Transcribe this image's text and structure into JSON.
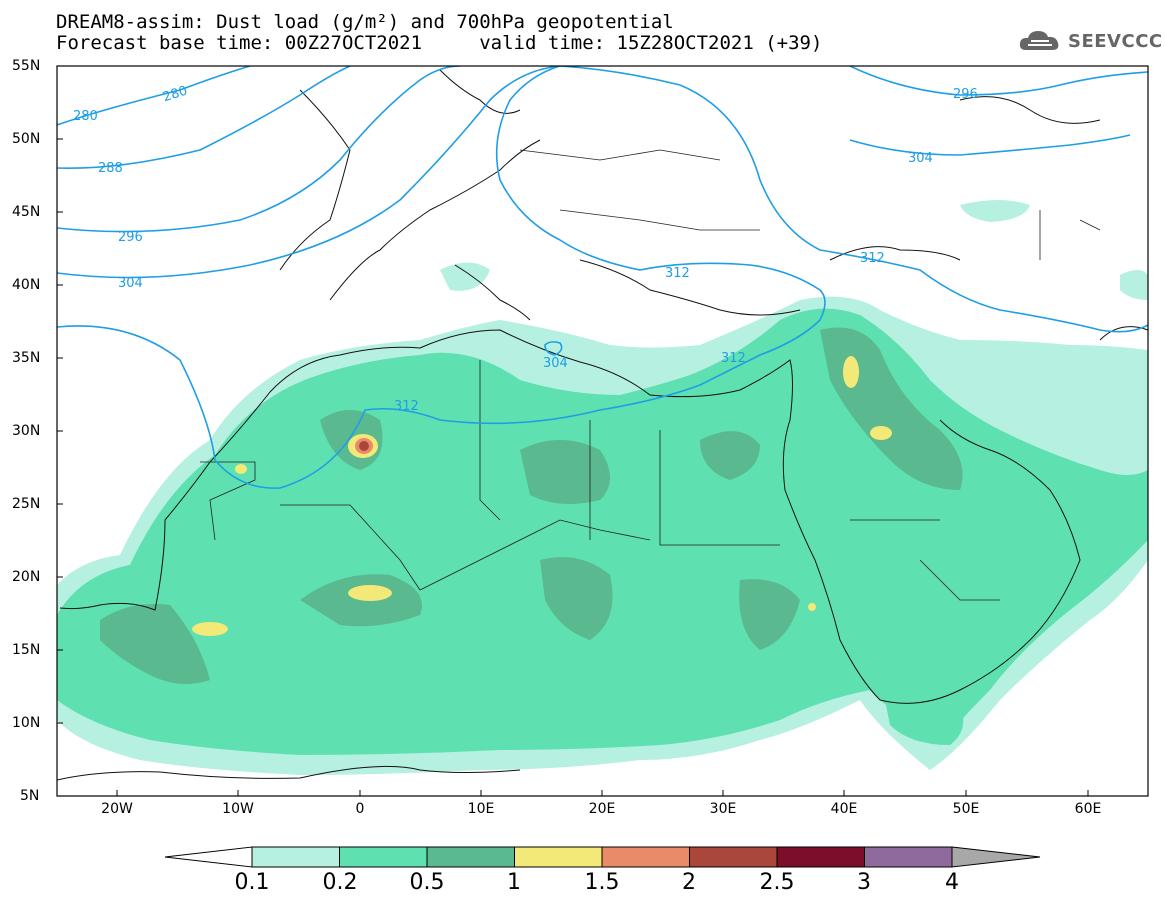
{
  "title": {
    "line1": "DREAM8-assim: Dust load (g/m²) and 700hPa geopotential",
    "line2": "Forecast base time: 00Z27OCT2021     valid time: 15Z28OCT2021 (+39)"
  },
  "brand": {
    "name": "SEEVCCC",
    "icon": "cloud-logo-icon"
  },
  "map": {
    "lon_range": [
      -25,
      65
    ],
    "lat_range": [
      5,
      55
    ],
    "lat_labels": [
      "55N",
      "50N",
      "45N",
      "40N",
      "35N",
      "30N",
      "25N",
      "20N",
      "15N",
      "10N",
      "5N"
    ],
    "lon_labels": [
      "20W",
      "10W",
      "0",
      "10E",
      "20E",
      "30E",
      "40E",
      "50E",
      "60E"
    ],
    "contour_color": "#1f9ee6",
    "contour_labels": [
      "280",
      "280",
      "288",
      "296",
      "304",
      "296",
      "304",
      "312",
      "312",
      "304",
      "312",
      "312"
    ]
  },
  "colorbar": {
    "labels": [
      "0.1",
      "0.2",
      "0.5",
      "1",
      "1.5",
      "2",
      "2.5",
      "3",
      "4"
    ],
    "colors": [
      "#b6f0e0",
      "#5ee0b0",
      "#5ab98e",
      "#f2e978",
      "#e98b68",
      "#a9473b",
      "#7d0e2a",
      "#8f6a9c",
      "#a8a8a8"
    ]
  }
}
